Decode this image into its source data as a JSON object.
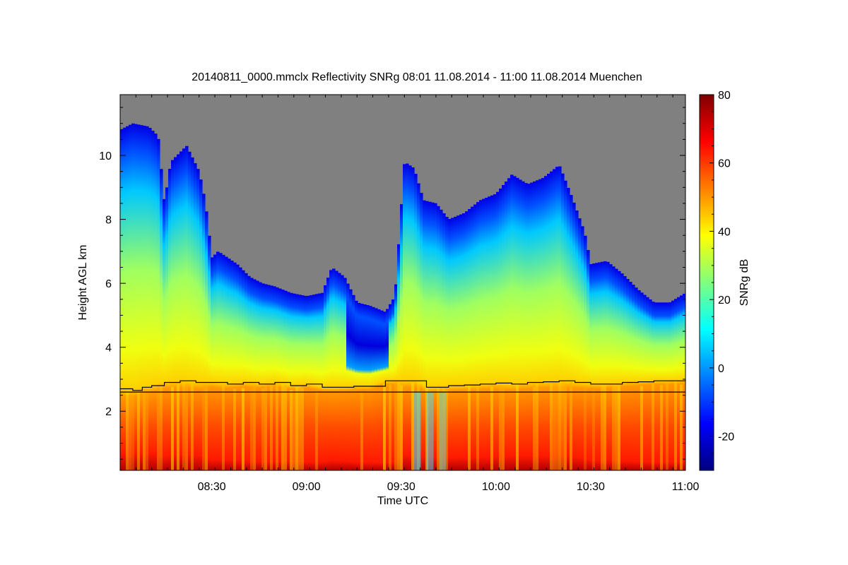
{
  "chart_data": {
    "type": "heatmap",
    "title": "20140811_0000.mmclx Reflectivity SNRg   08:01 11.08.2014 - 11:00 11.08.2014 Muenchen",
    "xlabel": "Time UTC",
    "ylabel": "Height AGL km",
    "colorbar_label": "SNRg dB",
    "x_range_minutes": [
      481,
      660
    ],
    "x_ticks": [
      {
        "value": 510,
        "label": "08:30"
      },
      {
        "value": 540,
        "label": "09:00"
      },
      {
        "value": 570,
        "label": "09:30"
      },
      {
        "value": 600,
        "label": "10:00"
      },
      {
        "value": 630,
        "label": "10:30"
      },
      {
        "value": 660,
        "label": "11:00"
      }
    ],
    "y_range_km": [
      0.15,
      11.9
    ],
    "y_ticks": [
      {
        "value": 2,
        "label": "2"
      },
      {
        "value": 4,
        "label": "4"
      },
      {
        "value": 6,
        "label": "6"
      },
      {
        "value": 8,
        "label": "8"
      },
      {
        "value": 10,
        "label": "10"
      }
    ],
    "colorbar_range": [
      -30,
      80
    ],
    "colorbar_ticks": [
      {
        "value": -20,
        "label": "-20"
      },
      {
        "value": 0,
        "label": "0"
      },
      {
        "value": 20,
        "label": "20"
      },
      {
        "value": 40,
        "label": "40"
      },
      {
        "value": 60,
        "label": "60"
      },
      {
        "value": 80,
        "label": "80"
      }
    ],
    "colormap": [
      "#00007f",
      "#0000ff",
      "#007fff",
      "#00ffff",
      "#7fff7f",
      "#ffff00",
      "#ff7f00",
      "#ff0000",
      "#7f0000"
    ],
    "no_signal_color": "#808080",
    "reference_line_km": 2.6,
    "boundary_layer_km": [
      [
        481,
        2.7
      ],
      [
        485,
        2.65
      ],
      [
        488,
        2.75
      ],
      [
        491,
        2.8
      ],
      [
        495,
        2.9
      ],
      [
        500,
        2.95
      ],
      [
        505,
        2.9
      ],
      [
        510,
        2.9
      ],
      [
        515,
        2.85
      ],
      [
        520,
        2.9
      ],
      [
        525,
        2.85
      ],
      [
        530,
        2.9
      ],
      [
        535,
        2.8
      ],
      [
        540,
        2.85
      ],
      [
        545,
        2.75
      ],
      [
        550,
        2.75
      ],
      [
        555,
        2.78
      ],
      [
        560,
        2.78
      ],
      [
        565,
        2.95
      ],
      [
        570,
        2.95
      ],
      [
        575,
        2.95
      ],
      [
        578,
        2.75
      ],
      [
        585,
        2.8
      ],
      [
        590,
        2.82
      ],
      [
        595,
        2.85
      ],
      [
        600,
        2.88
      ],
      [
        605,
        2.85
      ],
      [
        610,
        2.9
      ],
      [
        615,
        2.92
      ],
      [
        620,
        2.95
      ],
      [
        625,
        2.9
      ],
      [
        630,
        2.85
      ],
      [
        635,
        2.85
      ],
      [
        640,
        2.9
      ],
      [
        645,
        2.92
      ],
      [
        650,
        2.95
      ],
      [
        655,
        2.95
      ],
      [
        660,
        2.98
      ]
    ],
    "cloud_top_km": [
      [
        481,
        10.8
      ],
      [
        485,
        11.0
      ],
      [
        490,
        10.9
      ],
      [
        493,
        10.6
      ],
      [
        495,
        8.5
      ],
      [
        497,
        9.8
      ],
      [
        502,
        10.3
      ],
      [
        506,
        9.5
      ],
      [
        508,
        8.5
      ],
      [
        510,
        6.8
      ],
      [
        512,
        7.0
      ],
      [
        518,
        6.6
      ],
      [
        522,
        6.2
      ],
      [
        526,
        6.0
      ],
      [
        530,
        5.9
      ],
      [
        535,
        5.7
      ],
      [
        540,
        5.6
      ],
      [
        545,
        5.7
      ],
      [
        548,
        6.5
      ],
      [
        552,
        6.2
      ],
      [
        556,
        5.4
      ],
      [
        560,
        5.3
      ],
      [
        565,
        5.1
      ],
      [
        568,
        5.6
      ],
      [
        571,
        9.8
      ],
      [
        574,
        9.6
      ],
      [
        577,
        8.6
      ],
      [
        581,
        8.5
      ],
      [
        585,
        8.0
      ],
      [
        590,
        8.2
      ],
      [
        595,
        8.6
      ],
      [
        600,
        8.8
      ],
      [
        605,
        9.4
      ],
      [
        610,
        9.1
      ],
      [
        615,
        9.3
      ],
      [
        620,
        9.7
      ],
      [
        624,
        8.7
      ],
      [
        628,
        7.6
      ],
      [
        630,
        6.6
      ],
      [
        635,
        6.7
      ],
      [
        640,
        6.3
      ],
      [
        645,
        5.8
      ],
      [
        650,
        5.4
      ],
      [
        655,
        5.4
      ],
      [
        660,
        5.7
      ]
    ]
  }
}
